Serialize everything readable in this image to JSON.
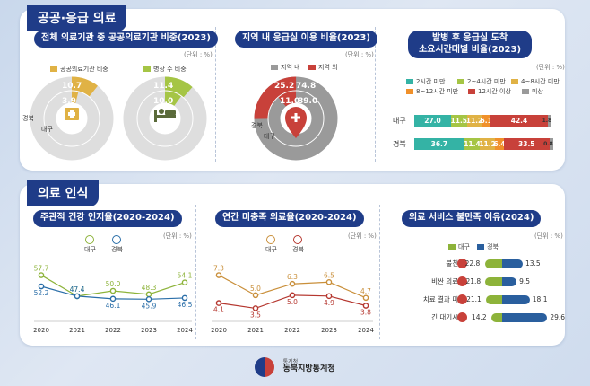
{
  "sections": {
    "public": "공공·응급 의료",
    "perception": "의료 인식"
  },
  "colors": {
    "navy": "#1f3c88",
    "gold": "#e0b245",
    "green": "#a5c545",
    "red": "#c8413a",
    "gray": "#9a9a9a",
    "teal": "#34b3a5"
  },
  "cards": {
    "public_ratio": {
      "title": "전체 의료기관 중 공공의료기관 비중(2023)",
      "unit": "(단위 : %)",
      "legend": [
        "공공의료기관 비중",
        "병상 수 비중"
      ],
      "ring_labels": {
        "outer": "대구",
        "inner": "경북"
      },
      "chart_data": {
        "type": "pie",
        "title": "전체 의료기관 중 공공의료기관 비중(2023)",
        "series": [
          {
            "name": "공공의료기관 비중",
            "values": [
              {
                "label": "대구",
                "value": 3.9
              },
              {
                "label": "경북",
                "value": 10.7
              }
            ]
          },
          {
            "name": "병상 수 비중",
            "values": [
              {
                "label": "대구",
                "value": 10.0
              },
              {
                "label": "경북",
                "value": 11.4
              }
            ]
          }
        ]
      }
    },
    "er_usage": {
      "title": "지역 내 응급실 이용 비율(2023)",
      "unit": "(단위 : %)",
      "legend": [
        "지역 내",
        "지역 외"
      ],
      "ring_labels": {
        "outer": "경북",
        "inner": "대구"
      },
      "chart_data": {
        "type": "pie",
        "title": "지역 내 응급실 이용 비율(2023)",
        "series": [
          {
            "name": "경북",
            "values": [
              {
                "label": "지역 내",
                "value": 74.8
              },
              {
                "label": "지역 외",
                "value": 25.2
              }
            ]
          },
          {
            "name": "대구",
            "values": [
              {
                "label": "지역 내",
                "value": 89.0
              },
              {
                "label": "지역 외",
                "value": 11.0
              }
            ]
          }
        ]
      }
    },
    "arrival_time": {
      "title": "발병 후 응급실 도착\n소요시간대별 비율(2023)",
      "unit": "(단위 : %)",
      "legend": [
        "2시간 미만",
        "2~4시간 미만",
        "4~8시간 미만",
        "8~12시간 미만",
        "12시간 이상",
        "미상"
      ],
      "segment_colors": [
        "#34b3a5",
        "#a5c545",
        "#e0b245",
        "#f0902a",
        "#c8413a",
        "#9a9a9a"
      ],
      "chart_data": {
        "type": "bar",
        "title": "발병 후 응급실 도착 소요시간대별 비율(2023)",
        "stacked": true,
        "orientation": "horizontal",
        "categories": [
          "대구",
          "경북"
        ],
        "series": [
          {
            "name": "2시간 미만",
            "values": [
              27.0,
              36.7
            ]
          },
          {
            "name": "2~4시간 미만",
            "values": [
              11.5,
              11.4
            ]
          },
          {
            "name": "4~8시간 미만",
            "values": [
              11.2,
              11.2
            ]
          },
          {
            "name": "8~12시간 미만",
            "values": [
              6.1,
              6.4
            ]
          },
          {
            "name": "12시간 이상",
            "values": [
              42.4,
              33.5
            ]
          },
          {
            "name": "미상",
            "values": [
              1.8,
              0.8
            ]
          }
        ]
      }
    },
    "health_perception": {
      "title": "주관적 건강 인지율(2020-2024)",
      "unit": "(단위 : %)",
      "legend": [
        "대구",
        "경북"
      ],
      "chart_data": {
        "type": "line",
        "title": "주관적 건강 인지율(2020-2024)",
        "x": [
          "2020",
          "2021",
          "2022",
          "2023",
          "2024"
        ],
        "series": [
          {
            "name": "대구",
            "values": [
              57.7,
              47.4,
              50.0,
              48.3,
              54.1
            ]
          },
          {
            "name": "경북",
            "values": [
              52.2,
              47.4,
              46.1,
              45.9,
              46.5
            ]
          }
        ],
        "ylim": [
          35,
          65
        ]
      }
    },
    "unmet_medical": {
      "title": "연간 미충족 의료율(2020-2024)",
      "unit": "(단위 : %)",
      "legend": [
        "대구",
        "경북"
      ],
      "chart_data": {
        "type": "line",
        "title": "연간 미충족 의료율(2020-2024)",
        "x": [
          "2020",
          "2021",
          "2022",
          "2023",
          "2024"
        ],
        "series": [
          {
            "name": "대구",
            "values": [
              7.3,
              5.0,
              6.3,
              6.5,
              4.7
            ]
          },
          {
            "name": "경북",
            "values": [
              4.1,
              3.5,
              5.0,
              4.9,
              3.8
            ]
          }
        ],
        "ylim": [
          2,
          9
        ]
      }
    },
    "dissatisfaction": {
      "title": "의료 서비스 불만족 이유(2024)",
      "unit": "(단위 : %)",
      "legend": [
        "대구",
        "경북"
      ],
      "chart_data": {
        "type": "bar",
        "title": "의료 서비스 불만족 이유(2024)",
        "orientation": "horizontal",
        "categories": [
          "불친절",
          "비싼 의료비",
          "치료 결과 미흡",
          "긴 대기시간"
        ],
        "series": [
          {
            "name": "대구",
            "values": [
              22.8,
              21.8,
              21.1,
              14.2
            ]
          },
          {
            "name": "경북",
            "values": [
              13.5,
              9.5,
              18.1,
              29.6
            ]
          }
        ]
      }
    }
  },
  "footer": {
    "org_small": "통계청",
    "org": "동북지방통계청"
  }
}
